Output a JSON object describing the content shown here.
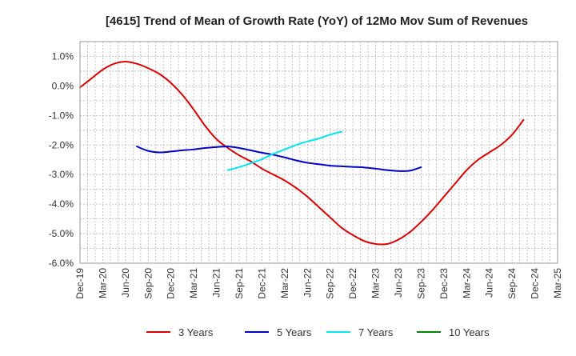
{
  "chart_data": {
    "type": "line",
    "title": "[4615]  Trend of Mean of Growth Rate (YoY) of 12Mo Mov Sum of Revenues",
    "xlabel": "",
    "ylabel": "",
    "ylim": [
      -6.0,
      1.5
    ],
    "yticks": [
      1.0,
      0.0,
      -1.0,
      -2.0,
      -3.0,
      -4.0,
      -5.0,
      -6.0
    ],
    "ytick_labels": [
      "1.0%",
      "0.0%",
      "-1.0%",
      "-2.0%",
      "-3.0%",
      "-4.0%",
      "-5.0%",
      "-6.0%"
    ],
    "xtick_labels": [
      "Dec-19",
      "Mar-20",
      "Jun-20",
      "Sep-20",
      "Dec-20",
      "Mar-21",
      "Jun-21",
      "Sep-21",
      "Dec-21",
      "Mar-22",
      "Jun-22",
      "Sep-22",
      "Dec-22",
      "Mar-23",
      "Jun-23",
      "Sep-23",
      "Dec-23",
      "Mar-24",
      "Jun-24",
      "Sep-24",
      "Dec-24",
      "Mar-25"
    ],
    "grid": true,
    "legend_position": "bottom",
    "series": [
      {
        "name": "3 Years",
        "color": "#dd0000",
        "start_index": 0,
        "values": [
          -0.05,
          0.25,
          0.55,
          0.75,
          0.82,
          0.75,
          0.6,
          0.4,
          0.1,
          -0.3,
          -0.8,
          -1.35,
          -1.8,
          -2.1,
          -2.35,
          -2.55,
          -2.8,
          -3.0,
          -3.2,
          -3.45,
          -3.75,
          -4.1,
          -4.45,
          -4.8,
          -5.05,
          -5.25,
          -5.35,
          -5.35,
          -5.2,
          -4.95,
          -4.6,
          -4.2,
          -3.75,
          -3.3,
          -2.85,
          -2.5,
          -2.25,
          -2.0,
          -1.65,
          -1.15
        ]
      },
      {
        "name": "5 Years",
        "color": "#0000cc",
        "start_index": 5,
        "values": [
          -2.05,
          -2.2,
          -2.25,
          -2.22,
          -2.18,
          -2.15,
          -2.1,
          -2.07,
          -2.05,
          -2.1,
          -2.18,
          -2.26,
          -2.33,
          -2.42,
          -2.52,
          -2.6,
          -2.65,
          -2.7,
          -2.72,
          -2.74,
          -2.76,
          -2.8,
          -2.85,
          -2.88,
          -2.87,
          -2.75
        ]
      },
      {
        "name": "7 Years",
        "color": "#00e5ee",
        "start_index": 13,
        "values": [
          -2.85,
          -2.75,
          -2.62,
          -2.48,
          -2.3,
          -2.15,
          -2.0,
          -1.88,
          -1.78,
          -1.65,
          -1.55
        ]
      },
      {
        "name": "10 Years",
        "color": "#008800",
        "start_index": 0,
        "values": []
      }
    ]
  }
}
